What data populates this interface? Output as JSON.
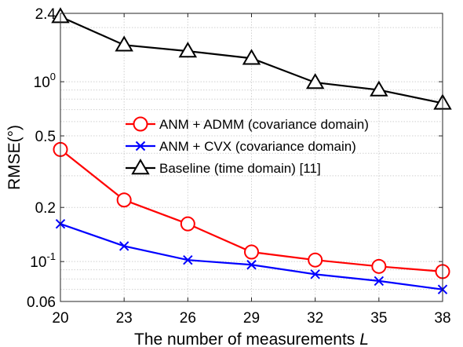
{
  "chart_data": {
    "type": "line",
    "xlabel": "The number of measurements",
    "xlabel_var": "L",
    "ylabel": "RMSE(°)",
    "yscale": "log",
    "xlim": [
      20,
      38
    ],
    "ylim": [
      0.06,
      2.4
    ],
    "grid": true,
    "legend_position": "center-right",
    "x": [
      20,
      23,
      26,
      29,
      32,
      35,
      38
    ],
    "x_tick_labels": [
      "20",
      "23",
      "26",
      "29",
      "32",
      "35",
      "38"
    ],
    "y_ticks": [
      {
        "value": 0.06,
        "label": "0.06"
      },
      {
        "value": 0.1,
        "label": "10",
        "exp": "-1"
      },
      {
        "value": 0.2,
        "label": "0.2"
      },
      {
        "value": 0.5,
        "label": "0.5"
      },
      {
        "value": 1.0,
        "label": "10",
        "exp": "0"
      },
      {
        "value": 2.4,
        "label": "2.4"
      }
    ],
    "series": [
      {
        "name": "ANM + ADMM (covariance domain)",
        "color": "#ff0000",
        "marker": "circle",
        "values": [
          0.42,
          0.22,
          0.162,
          0.113,
          0.102,
          0.094,
          0.088
        ]
      },
      {
        "name": "ANM + CVX (covariance domain)",
        "color": "#0000ff",
        "marker": "x",
        "values": [
          0.162,
          0.122,
          0.102,
          0.096,
          0.085,
          0.078,
          0.07
        ]
      },
      {
        "name": "Baseline (time domain) [11]",
        "color": "#000000",
        "marker": "triangle",
        "values": [
          2.3,
          1.6,
          1.48,
          1.35,
          0.99,
          0.9,
          0.76
        ]
      }
    ]
  }
}
